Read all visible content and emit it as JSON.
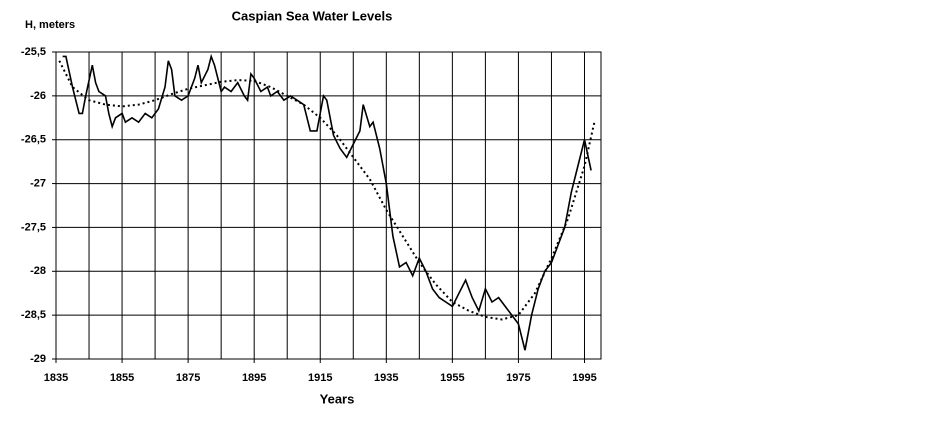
{
  "chart_data": {
    "type": "line",
    "title": "Caspian Sea Water Levels",
    "ylabel": "H, meters",
    "xlabel": "Years",
    "xlim": [
      1835,
      2000
    ],
    "ylim": [
      -29,
      -25.5
    ],
    "xticks": [
      1835,
      1855,
      1875,
      1895,
      1915,
      1935,
      1955,
      1975,
      1995
    ],
    "xgrid": [
      1835,
      1845,
      1855,
      1865,
      1875,
      1885,
      1895,
      1905,
      1915,
      1925,
      1935,
      1945,
      1955,
      1965,
      1975,
      1985,
      1995
    ],
    "yticks": [
      {
        "value": -25.5,
        "label": "-25,5"
      },
      -26,
      {
        "value": -26.5,
        "label": "-26,5"
      },
      -27,
      {
        "value": -27.5,
        "label": "-27,5"
      },
      -28,
      {
        "value": -28.5,
        "label": "-28,5"
      },
      -29
    ],
    "grid": true,
    "series": [
      {
        "color": "#000000",
        "style": "solid",
        "x": [
          1837,
          1838,
          1840,
          1842,
          1843,
          1844,
          1846,
          1847,
          1848,
          1850,
          1851,
          1852,
          1853,
          1855,
          1856,
          1858,
          1860,
          1862,
          1864,
          1866,
          1868,
          1869,
          1870,
          1871,
          1873,
          1875,
          1877,
          1878,
          1879,
          1881,
          1882,
          1883,
          1885,
          1886,
          1888,
          1890,
          1892,
          1893,
          1894,
          1895,
          1897,
          1899,
          1900,
          1902,
          1904,
          1906,
          1908,
          1910,
          1912,
          1914,
          1916,
          1917,
          1919,
          1921,
          1923,
          1925,
          1927,
          1928,
          1930,
          1931,
          1933,
          1935,
          1937,
          1939,
          1941,
          1943,
          1945,
          1947,
          1949,
          1951,
          1953,
          1955,
          1957,
          1959,
          1961,
          1963,
          1965,
          1967,
          1969,
          1971,
          1973,
          1975,
          1977,
          1979,
          1981,
          1983,
          1985,
          1987,
          1989,
          1991,
          1993,
          1995,
          1997
        ],
        "values": [
          -25.55,
          -25.55,
          -25.9,
          -26.2,
          -26.2,
          -26.0,
          -25.65,
          -25.85,
          -25.95,
          -26.0,
          -26.2,
          -26.35,
          -26.25,
          -26.2,
          -26.3,
          -26.25,
          -26.3,
          -26.2,
          -26.25,
          -26.15,
          -25.9,
          -25.6,
          -25.7,
          -26.0,
          -26.05,
          -26.0,
          -25.8,
          -25.65,
          -25.85,
          -25.7,
          -25.55,
          -25.65,
          -25.95,
          -25.9,
          -25.95,
          -25.85,
          -26.0,
          -26.05,
          -25.75,
          -25.8,
          -25.95,
          -25.9,
          -26.0,
          -25.95,
          -26.05,
          -26.0,
          -26.05,
          -26.1,
          -26.4,
          -26.4,
          -26.0,
          -26.05,
          -26.45,
          -26.6,
          -26.7,
          -26.55,
          -26.4,
          -26.1,
          -26.35,
          -26.3,
          -26.6,
          -27.0,
          -27.6,
          -27.95,
          -27.9,
          -28.05,
          -27.85,
          -28.0,
          -28.2,
          -28.3,
          -28.35,
          -28.4,
          -28.25,
          -28.1,
          -28.3,
          -28.45,
          -28.2,
          -28.35,
          -28.3,
          -28.4,
          -28.5,
          -28.6,
          -28.9,
          -28.5,
          -28.2,
          -28.0,
          -27.9,
          -27.7,
          -27.5,
          -27.1,
          -26.8,
          -26.5,
          -26.85
        ]
      },
      {
        "color": "#000000",
        "style": "dotted",
        "x": [
          1836,
          1840,
          1845,
          1850,
          1855,
          1860,
          1865,
          1870,
          1875,
          1880,
          1885,
          1890,
          1895,
          1900,
          1905,
          1910,
          1915,
          1920,
          1925,
          1930,
          1935,
          1940,
          1945,
          1950,
          1955,
          1960,
          1965,
          1970,
          1975,
          1980,
          1985,
          1990,
          1995,
          1998
        ],
        "values": [
          -25.6,
          -25.9,
          -26.05,
          -26.1,
          -26.12,
          -26.1,
          -26.05,
          -25.98,
          -25.92,
          -25.88,
          -25.84,
          -25.82,
          -25.83,
          -25.9,
          -26.0,
          -26.1,
          -26.25,
          -26.45,
          -26.7,
          -26.95,
          -27.3,
          -27.6,
          -27.9,
          -28.15,
          -28.35,
          -28.45,
          -28.52,
          -28.55,
          -28.5,
          -28.25,
          -27.85,
          -27.4,
          -26.8,
          -26.3
        ]
      }
    ]
  }
}
